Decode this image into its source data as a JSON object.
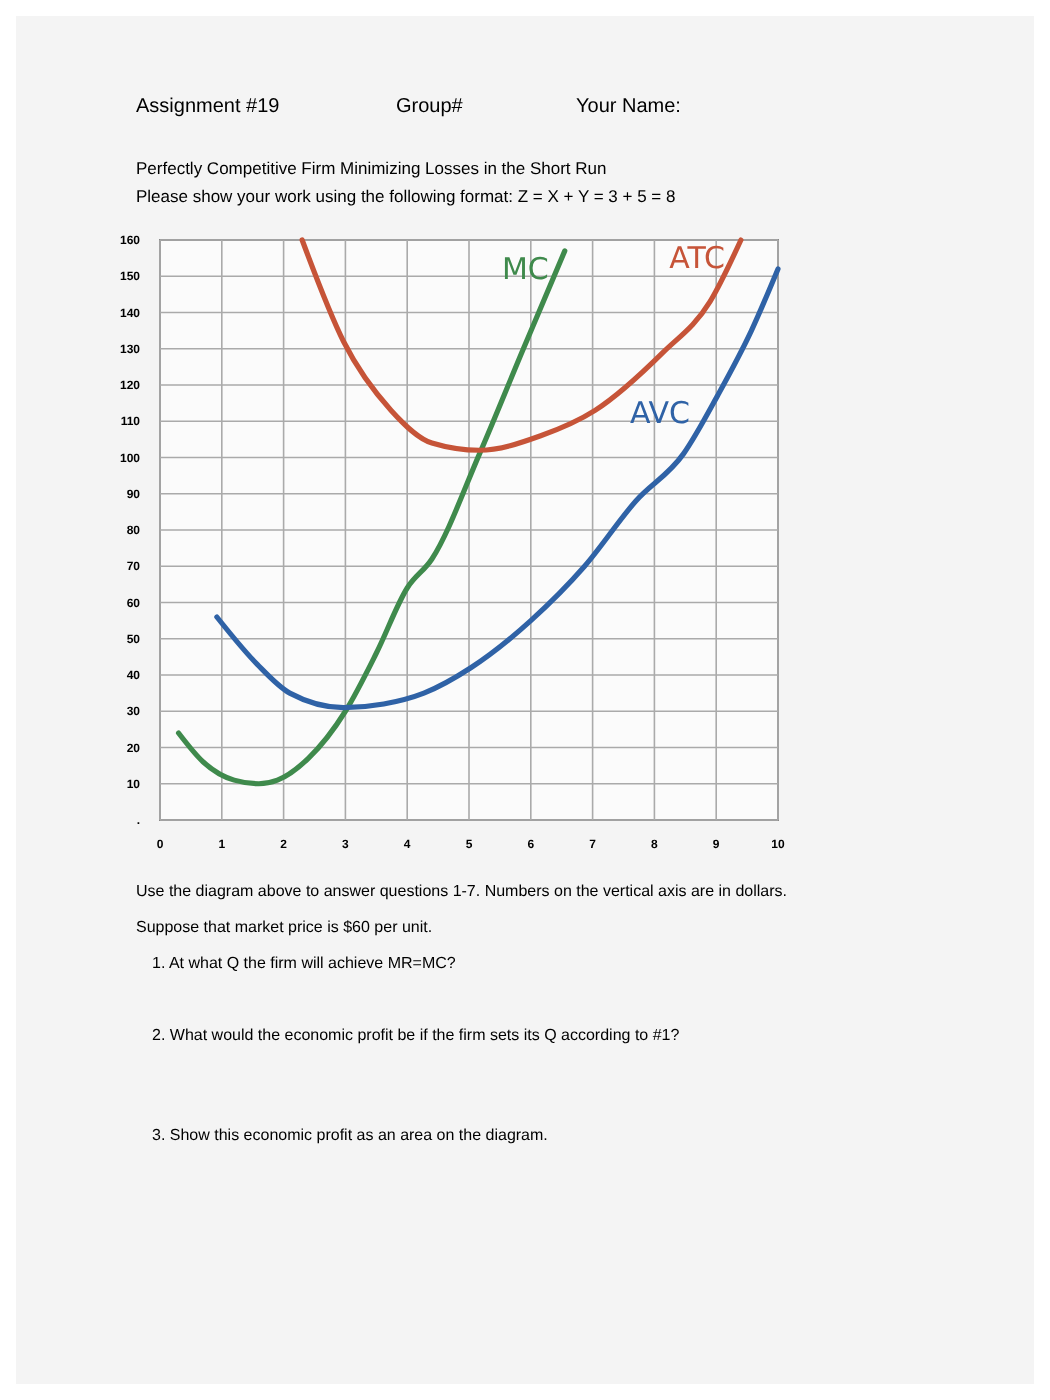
{
  "chart_data": {
    "type": "line",
    "title": "Perfectly Competitive Firm Minimizing Losses in the Short Run",
    "subtitle": "Please show your work using the following format: Z = X + Y = 3 + 5 = 8",
    "annotations": [
      "Assignment #19",
      "Group#",
      "Your Name:",
      "Use the diagram above to answer questions 1-7. Numbers on the vertical axis are in dollars.",
      "Suppose that market price is $60 per unit.",
      "1.  At what Q the firm will achieve MR=MC?",
      "2.  What would the economic profit be if the firm sets its Q according to #1?",
      "3.  Show this economic profit as an area on the diagram."
    ],
    "xlim": [
      0,
      10
    ],
    "xticks": [
      0,
      1,
      2,
      3,
      4,
      5,
      6,
      7,
      8,
      9,
      10
    ],
    "ylim": [
      0,
      160
    ],
    "yticks": [
      {
        "value": 0,
        "label": "."
      },
      10,
      20,
      30,
      40,
      50,
      60,
      70,
      80,
      90,
      100,
      110,
      120,
      130,
      140,
      150,
      160
    ],
    "grid": true,
    "marker": "none",
    "line_style": "solid",
    "series": [
      {
        "name": "MC",
        "color": "#3f8a4c",
        "x": [
          0.3,
          0.7,
          1.2,
          1.6,
          1.9,
          2.4,
          3.0,
          3.5,
          4.0,
          4.4,
          5.17,
          5.88,
          6.55
        ],
        "values": [
          24,
          16,
          11,
          10,
          11,
          17,
          30,
          46,
          64,
          72,
          101,
          130,
          157
        ]
      },
      {
        "name": "ATC",
        "color": "#c65438",
        "x": [
          2.3,
          2.97,
          3.74,
          4.4,
          5.17,
          6.16,
          7.04,
          8.14,
          8.9,
          9.4
        ],
        "values": [
          160,
          132,
          113,
          104,
          102,
          106,
          113,
          129,
          143,
          160
        ]
      },
      {
        "name": "AVC",
        "color": "#2f62a6",
        "x": [
          0.92,
          1.57,
          2.1,
          2.97,
          3.62,
          4.27,
          5.03,
          6.0,
          6.87,
          7.7,
          8.47,
          9.02,
          9.57,
          10.0
        ],
        "values": [
          56,
          43,
          35,
          31,
          32,
          35,
          42,
          55,
          70,
          88,
          101,
          117,
          135,
          152
        ]
      }
    ]
  }
}
